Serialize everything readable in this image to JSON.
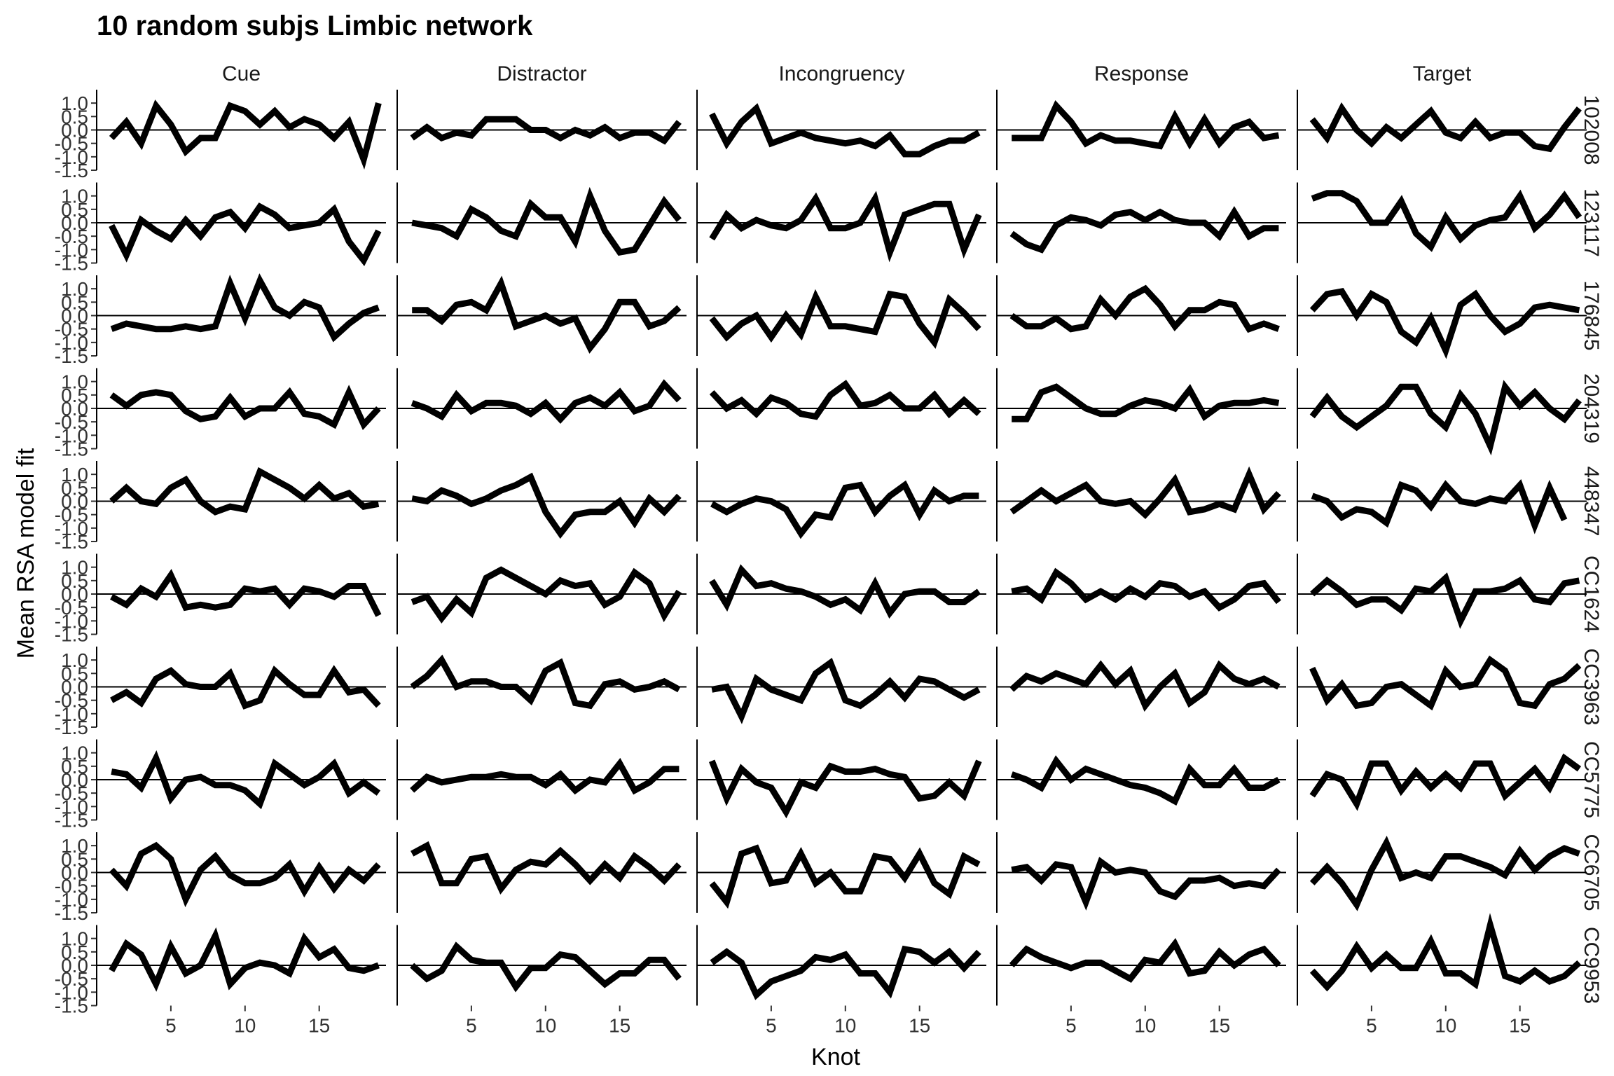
{
  "chart_data": {
    "type": "line",
    "title": "10 random subjs Limbic network",
    "xlabel": "Knot",
    "ylabel": "Mean RSA model fit",
    "x": [
      1,
      2,
      3,
      4,
      5,
      6,
      7,
      8,
      9,
      10,
      11,
      12,
      13,
      14,
      15,
      16,
      17,
      18,
      19
    ],
    "xlim": [
      0,
      19.5
    ],
    "ylim": [
      -1.5,
      1.5
    ],
    "x_ticks": [
      5,
      10,
      15
    ],
    "y_ticks": [
      1.0,
      0.5,
      0.0,
      -0.5,
      -1.0,
      -1.5
    ],
    "y_tick_labels": [
      "1.0",
      "0.5",
      "0.0",
      "-0.5",
      "-1.0",
      "-1.5"
    ],
    "reference_line_y": 0,
    "columns": [
      "Cue",
      "Distractor",
      "Incongruency",
      "Response",
      "Target"
    ],
    "rows": [
      "102008",
      "123117",
      "176845",
      "204319",
      "448347",
      "CC1624",
      "CC3963",
      "CC5775",
      "CC6705",
      "CC9953"
    ],
    "grid": false,
    "legend": "none",
    "line_color": "#000000",
    "panels": [
      [
        [
          -0.3,
          0.3,
          -0.5,
          0.9,
          0.2,
          -0.8,
          -0.3,
          -0.3,
          0.9,
          0.7,
          0.2,
          0.7,
          0.1,
          0.4,
          0.2,
          -0.3,
          0.3,
          -1.1,
          1.0
        ],
        [
          -0.3,
          0.1,
          -0.3,
          -0.1,
          -0.2,
          0.4,
          0.4,
          0.4,
          0.0,
          0.0,
          -0.3,
          0.0,
          -0.2,
          0.1,
          -0.3,
          -0.1,
          -0.1,
          -0.4,
          0.3
        ],
        [
          0.6,
          -0.5,
          0.3,
          0.8,
          -0.5,
          -0.3,
          -0.1,
          -0.3,
          -0.4,
          -0.5,
          -0.4,
          -0.6,
          -0.2,
          -0.9,
          -0.9,
          -0.6,
          -0.4,
          -0.4,
          -0.1
        ],
        [
          -0.3,
          -0.3,
          -0.3,
          0.9,
          0.3,
          -0.5,
          -0.2,
          -0.4,
          -0.4,
          -0.5,
          -0.6,
          0.5,
          -0.5,
          0.4,
          -0.5,
          0.1,
          0.3,
          -0.3,
          -0.2
        ],
        [
          0.4,
          -0.3,
          0.8,
          0.0,
          -0.5,
          0.1,
          -0.3,
          0.2,
          0.7,
          -0.1,
          -0.3,
          0.3,
          -0.3,
          -0.1,
          -0.1,
          -0.6,
          -0.7,
          0.1,
          0.8
        ]
      ],
      [
        [
          -0.1,
          -1.2,
          0.1,
          -0.3,
          -0.6,
          0.1,
          -0.5,
          0.2,
          0.4,
          -0.2,
          0.6,
          0.3,
          -0.2,
          -0.1,
          0.0,
          0.5,
          -0.7,
          -1.4,
          -0.3
        ],
        [
          0.0,
          -0.1,
          -0.2,
          -0.5,
          0.5,
          0.2,
          -0.3,
          -0.5,
          0.7,
          0.2,
          0.2,
          -0.7,
          1.0,
          -0.3,
          -1.1,
          -1.0,
          -0.1,
          0.8,
          0.1
        ],
        [
          -0.6,
          0.3,
          -0.2,
          0.1,
          -0.1,
          -0.2,
          0.1,
          0.9,
          -0.2,
          -0.2,
          0.0,
          0.9,
          -1.1,
          0.3,
          0.5,
          0.7,
          0.7,
          -1.0,
          0.3
        ],
        [
          -0.4,
          -0.8,
          -1.0,
          -0.1,
          0.2,
          0.1,
          -0.1,
          0.3,
          0.4,
          0.1,
          0.4,
          0.1,
          0.0,
          0.0,
          -0.5,
          0.4,
          -0.5,
          -0.2,
          -0.2
        ],
        [
          0.9,
          1.1,
          1.1,
          0.8,
          0.0,
          0.0,
          0.8,
          -0.4,
          -0.9,
          0.2,
          -0.6,
          -0.1,
          0.1,
          0.2,
          1.0,
          -0.2,
          0.3,
          1.0,
          0.2
        ]
      ],
      [
        [
          -0.5,
          -0.3,
          -0.4,
          -0.5,
          -0.5,
          -0.4,
          -0.5,
          -0.4,
          1.2,
          -0.1,
          1.3,
          0.3,
          0.0,
          0.5,
          0.3,
          -0.8,
          -0.3,
          0.1,
          0.3
        ],
        [
          0.2,
          0.2,
          -0.2,
          0.4,
          0.5,
          0.2,
          1.2,
          -0.4,
          -0.2,
          0.0,
          -0.3,
          -0.1,
          -1.2,
          -0.5,
          0.5,
          0.5,
          -0.4,
          -0.2,
          0.3
        ],
        [
          -0.1,
          -0.8,
          -0.3,
          0.0,
          -0.8,
          0.0,
          -0.7,
          0.7,
          -0.4,
          -0.4,
          -0.5,
          -0.6,
          0.8,
          0.7,
          -0.3,
          -1.0,
          0.6,
          0.1,
          -0.5
        ],
        [
          0.0,
          -0.4,
          -0.4,
          -0.1,
          -0.5,
          -0.4,
          0.6,
          0.0,
          0.7,
          1.0,
          0.4,
          -0.4,
          0.2,
          0.2,
          0.5,
          0.4,
          -0.5,
          -0.3,
          -0.5
        ],
        [
          0.2,
          0.8,
          0.9,
          0.0,
          0.8,
          0.5,
          -0.6,
          -1.0,
          -0.1,
          -1.3,
          0.4,
          0.8,
          0.0,
          -0.6,
          -0.3,
          0.3,
          0.4,
          0.3,
          0.2
        ]
      ],
      [
        [
          0.5,
          0.1,
          0.5,
          0.6,
          0.5,
          -0.1,
          -0.4,
          -0.3,
          0.4,
          -0.3,
          0.0,
          0.0,
          0.6,
          -0.2,
          -0.3,
          -0.6,
          0.6,
          -0.6,
          0.0
        ],
        [
          0.2,
          0.0,
          -0.3,
          0.5,
          -0.1,
          0.2,
          0.2,
          0.1,
          -0.2,
          0.2,
          -0.4,
          0.2,
          0.4,
          0.1,
          0.6,
          -0.1,
          0.1,
          0.9,
          0.3
        ],
        [
          0.6,
          0.0,
          0.3,
          -0.2,
          0.4,
          0.2,
          -0.2,
          -0.3,
          0.5,
          0.9,
          0.1,
          0.2,
          0.5,
          0.0,
          0.0,
          0.5,
          -0.2,
          0.3,
          -0.2
        ],
        [
          -0.4,
          -0.4,
          0.6,
          0.8,
          0.4,
          0.0,
          -0.2,
          -0.2,
          0.1,
          0.3,
          0.2,
          0.0,
          0.7,
          -0.3,
          0.1,
          0.2,
          0.2,
          0.3,
          0.2
        ],
        [
          -0.3,
          0.4,
          -0.3,
          -0.7,
          -0.3,
          0.1,
          0.8,
          0.8,
          -0.2,
          -0.7,
          0.5,
          -0.2,
          -1.4,
          0.8,
          0.1,
          0.6,
          0.0,
          -0.4,
          0.3
        ]
      ],
      [
        [
          0.0,
          0.5,
          0.0,
          -0.1,
          0.5,
          0.8,
          0.0,
          -0.4,
          -0.2,
          -0.3,
          1.1,
          0.8,
          0.5,
          0.1,
          0.6,
          0.1,
          0.3,
          -0.2,
          -0.1
        ],
        [
          0.1,
          0.0,
          0.4,
          0.2,
          -0.1,
          0.1,
          0.4,
          0.6,
          0.9,
          -0.4,
          -1.2,
          -0.5,
          -0.4,
          -0.4,
          0.0,
          -0.8,
          0.1,
          -0.4,
          0.2
        ],
        [
          -0.1,
          -0.4,
          -0.1,
          0.1,
          0.0,
          -0.3,
          -1.2,
          -0.5,
          -0.6,
          0.5,
          0.6,
          -0.4,
          0.2,
          0.6,
          -0.5,
          0.4,
          0.0,
          0.2,
          0.2
        ],
        [
          -0.4,
          0.0,
          0.4,
          0.0,
          0.3,
          0.6,
          0.0,
          -0.1,
          0.0,
          -0.5,
          0.1,
          0.8,
          -0.4,
          -0.3,
          -0.1,
          -0.3,
          1.0,
          -0.3,
          0.3
        ],
        [
          0.2,
          0.0,
          -0.6,
          -0.3,
          -0.4,
          -0.8,
          0.6,
          0.4,
          -0.2,
          0.6,
          0.0,
          -0.1,
          0.1,
          0.0,
          0.6,
          -0.9,
          0.5,
          -0.7,
          null
        ]
      ],
      [
        [
          -0.1,
          -0.4,
          0.2,
          -0.1,
          0.7,
          -0.5,
          -0.4,
          -0.5,
          -0.4,
          0.2,
          0.1,
          0.2,
          -0.4,
          0.2,
          0.1,
          -0.1,
          0.3,
          0.3,
          -0.8
        ],
        [
          -0.3,
          -0.1,
          -0.9,
          -0.2,
          -0.7,
          0.6,
          0.9,
          0.6,
          0.3,
          0.0,
          0.5,
          0.3,
          0.4,
          -0.4,
          -0.1,
          0.8,
          0.4,
          -0.8,
          0.1
        ],
        [
          0.5,
          -0.4,
          0.9,
          0.3,
          0.4,
          0.2,
          0.1,
          -0.1,
          -0.4,
          -0.2,
          -0.6,
          0.4,
          -0.7,
          0.0,
          0.1,
          0.1,
          -0.3,
          -0.3,
          0.1
        ],
        [
          0.1,
          0.2,
          -0.2,
          0.8,
          0.4,
          -0.2,
          0.1,
          -0.2,
          0.2,
          -0.1,
          0.4,
          0.3,
          -0.1,
          0.1,
          -0.5,
          -0.2,
          0.3,
          0.4,
          -0.3
        ],
        [
          0.0,
          0.5,
          0.1,
          -0.4,
          -0.2,
          -0.2,
          -0.6,
          0.2,
          0.1,
          0.6,
          -1.0,
          0.1,
          0.1,
          0.2,
          0.5,
          -0.2,
          -0.3,
          0.4,
          0.5
        ]
      ],
      [
        [
          -0.5,
          -0.2,
          -0.6,
          0.3,
          0.6,
          0.1,
          0.0,
          0.0,
          0.5,
          -0.7,
          -0.5,
          0.6,
          0.1,
          -0.3,
          -0.3,
          0.6,
          -0.2,
          -0.1,
          -0.7
        ],
        [
          0.0,
          0.4,
          1.0,
          0.0,
          0.2,
          0.2,
          0.0,
          0.0,
          -0.5,
          0.6,
          0.9,
          -0.6,
          -0.7,
          0.1,
          0.2,
          -0.1,
          0.0,
          0.2,
          -0.1
        ],
        [
          -0.1,
          0.0,
          -1.1,
          0.3,
          -0.1,
          -0.3,
          -0.5,
          0.5,
          0.9,
          -0.5,
          -0.7,
          -0.3,
          0.2,
          -0.4,
          0.3,
          0.2,
          -0.1,
          -0.4,
          -0.1
        ],
        [
          -0.1,
          0.4,
          0.2,
          0.5,
          0.3,
          0.1,
          0.8,
          0.1,
          0.6,
          -0.7,
          0.0,
          0.5,
          -0.6,
          -0.2,
          0.8,
          0.3,
          0.1,
          0.3,
          0.0
        ],
        [
          0.7,
          -0.5,
          0.1,
          -0.7,
          -0.6,
          0.0,
          0.1,
          -0.3,
          -0.7,
          0.6,
          0.0,
          0.1,
          1.0,
          0.6,
          -0.6,
          -0.7,
          0.1,
          0.3,
          0.8
        ]
      ],
      [
        [
          0.3,
          0.2,
          -0.3,
          0.8,
          -0.7,
          0.0,
          0.1,
          -0.2,
          -0.2,
          -0.4,
          -0.9,
          0.6,
          0.2,
          -0.2,
          0.1,
          0.6,
          -0.5,
          -0.1,
          -0.5
        ],
        [
          -0.4,
          0.1,
          -0.1,
          0.0,
          0.1,
          0.1,
          0.2,
          0.1,
          0.1,
          -0.2,
          0.2,
          -0.4,
          0.0,
          -0.1,
          0.6,
          -0.4,
          -0.1,
          0.4,
          0.4
        ],
        [
          0.7,
          -0.7,
          0.4,
          -0.1,
          -0.3,
          -1.2,
          -0.1,
          -0.3,
          0.5,
          0.3,
          0.3,
          0.4,
          0.2,
          0.1,
          -0.7,
          -0.6,
          -0.1,
          -0.6,
          0.7
        ],
        [
          0.2,
          0.0,
          -0.3,
          0.7,
          0.0,
          0.4,
          0.2,
          0.0,
          -0.2,
          -0.3,
          -0.5,
          -0.8,
          0.4,
          -0.2,
          -0.2,
          0.4,
          -0.3,
          -0.3,
          0.0
        ],
        [
          -0.6,
          0.2,
          0.0,
          -0.9,
          0.6,
          0.6,
          -0.4,
          0.3,
          -0.3,
          0.2,
          -0.3,
          0.6,
          0.6,
          -0.6,
          -0.1,
          0.4,
          -0.3,
          0.8,
          0.4
        ]
      ],
      [
        [
          0.1,
          -0.5,
          0.7,
          1.0,
          0.5,
          -1.0,
          0.1,
          0.6,
          -0.1,
          -0.4,
          -0.4,
          -0.2,
          0.3,
          -0.7,
          0.2,
          -0.6,
          0.1,
          -0.3,
          0.3
        ],
        [
          0.7,
          1.0,
          -0.4,
          -0.4,
          0.5,
          0.6,
          -0.6,
          0.1,
          0.4,
          0.3,
          0.8,
          0.3,
          -0.3,
          0.3,
          -0.2,
          0.6,
          0.2,
          -0.3,
          0.3
        ],
        [
          -0.4,
          -1.1,
          0.7,
          0.9,
          -0.4,
          -0.3,
          0.7,
          -0.4,
          0.0,
          -0.7,
          -0.7,
          0.6,
          0.5,
          -0.2,
          0.7,
          -0.4,
          -0.8,
          0.6,
          0.3
        ],
        [
          0.1,
          0.2,
          -0.3,
          0.3,
          0.2,
          -1.1,
          0.4,
          0.0,
          0.1,
          0.0,
          -0.7,
          -0.9,
          -0.3,
          -0.3,
          -0.2,
          -0.5,
          -0.4,
          -0.5,
          0.1
        ],
        [
          -0.4,
          0.2,
          -0.4,
          -1.2,
          0.1,
          1.1,
          -0.2,
          0.0,
          -0.2,
          0.6,
          0.6,
          0.4,
          0.2,
          -0.1,
          0.8,
          0.1,
          0.6,
          0.9,
          0.7
        ]
      ],
      [
        [
          -0.2,
          0.8,
          0.4,
          -0.7,
          0.7,
          -0.3,
          0.0,
          1.1,
          -0.7,
          -0.1,
          0.1,
          0.0,
          -0.3,
          1.0,
          0.3,
          0.6,
          -0.1,
          -0.2,
          0.0
        ],
        [
          0.0,
          -0.5,
          -0.2,
          0.7,
          0.2,
          0.1,
          0.1,
          -0.8,
          -0.1,
          -0.1,
          0.4,
          0.3,
          -0.2,
          -0.7,
          -0.3,
          -0.3,
          0.2,
          0.2,
          -0.5
        ],
        [
          0.1,
          0.5,
          0.1,
          -1.1,
          -0.6,
          -0.4,
          -0.2,
          0.3,
          0.2,
          0.4,
          -0.3,
          -0.3,
          -1.0,
          0.6,
          0.5,
          0.1,
          0.5,
          -0.1,
          0.5
        ],
        [
          0.0,
          0.6,
          0.3,
          0.1,
          -0.1,
          0.1,
          0.1,
          -0.2,
          -0.5,
          0.2,
          0.1,
          0.8,
          -0.3,
          -0.2,
          0.5,
          0.0,
          0.4,
          0.6,
          0.0
        ],
        [
          -0.2,
          -0.8,
          -0.2,
          0.7,
          -0.1,
          0.4,
          -0.1,
          -0.1,
          0.9,
          -0.3,
          -0.3,
          -0.7,
          1.5,
          -0.4,
          -0.6,
          -0.2,
          -0.6,
          -0.4,
          0.1
        ]
      ]
    ]
  }
}
